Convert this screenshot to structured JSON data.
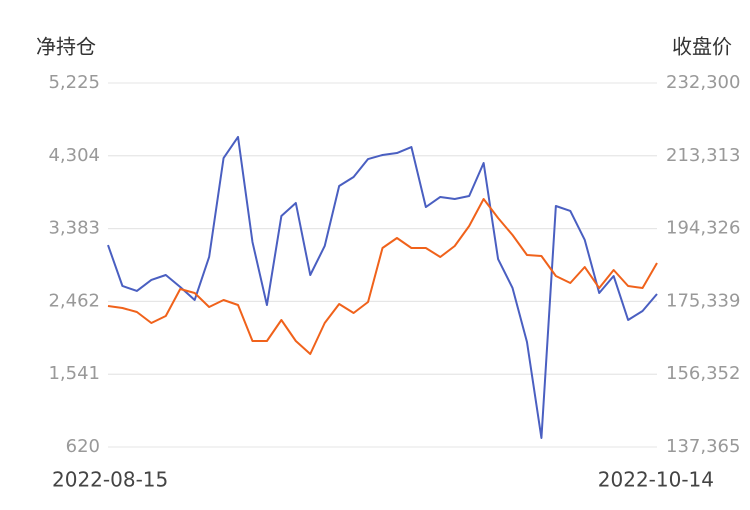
{
  "chart_data": {
    "type": "line",
    "ylabel": "净持仓",
    "y2label": "收盘价",
    "categories": [
      "2022-08-15",
      null,
      null,
      null,
      null,
      null,
      null,
      null,
      null,
      null,
      null,
      null,
      null,
      null,
      null,
      null,
      null,
      null,
      null,
      null,
      null,
      null,
      null,
      null,
      null,
      null,
      null,
      null,
      null,
      null,
      null,
      null,
      null,
      null,
      null,
      null,
      null,
      null,
      "2022-10-14"
    ],
    "ylim": [
      620,
      5225
    ],
    "yticks": [
      {
        "value": 620,
        "label": "620"
      },
      {
        "value": 1541,
        "label": "1,541"
      },
      {
        "value": 2462,
        "label": "2,462"
      },
      {
        "value": 3383,
        "label": "3,383"
      },
      {
        "value": 4304,
        "label": "4,304"
      },
      {
        "value": 5225,
        "label": "5,225"
      }
    ],
    "y2lim": [
      137365,
      232300
    ],
    "y2ticks": [
      {
        "value": 137365,
        "label": "137,365"
      },
      {
        "value": 156352,
        "label": "156,352"
      },
      {
        "value": 175339,
        "label": "175,339"
      },
      {
        "value": 194326,
        "label": "194,326"
      },
      {
        "value": 213313,
        "label": "213,313"
      },
      {
        "value": 232300,
        "label": "232,300"
      }
    ],
    "grid": true,
    "series": [
      {
        "name": "净持仓",
        "color": "#4a5fc1",
        "values": [
          3175,
          2657,
          2594,
          2733,
          2796,
          2644,
          2480,
          3024,
          4276,
          4542,
          3213,
          2416,
          3542,
          3707,
          2796,
          3163,
          3922,
          4036,
          4263,
          4314,
          4339,
          4415,
          3656,
          3783,
          3757,
          3795,
          4213,
          2998,
          2632,
          1948,
          734,
          3669,
          3606,
          3239,
          2568,
          2783,
          2227,
          2341,
          2556
        ]
      },
      {
        "name": "收盘价",
        "color": "#f0621b",
        "axis": "y2",
        "values": [
          174138,
          173616,
          172573,
          169704,
          171530,
          178571,
          177528,
          173877,
          175703,
          174399,
          165010,
          165010,
          170487,
          165010,
          161619,
          169704,
          174659,
          172312,
          175181,
          189264,
          191872,
          189264,
          189264,
          186917,
          189786,
          195002,
          202043,
          197088,
          192655,
          187439,
          187178,
          181962,
          180136,
          184309,
          178832,
          183527,
          179354,
          178832,
          185352
        ]
      }
    ]
  }
}
